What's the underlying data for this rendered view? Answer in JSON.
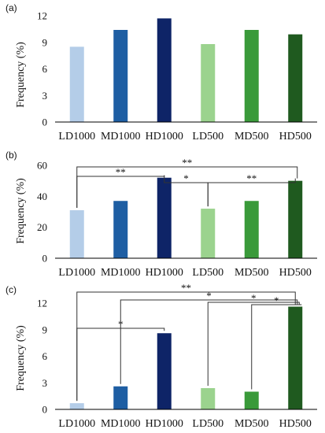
{
  "chart_data": [
    {
      "panel_label": "(a)",
      "type": "bar",
      "ylabel": "Frequency (%)",
      "xlabel": "",
      "ylim": [
        0,
        12
      ],
      "yticks": [
        0,
        3,
        6,
        9,
        12
      ],
      "grid": false,
      "categories": [
        "LD1000",
        "MD1000",
        "HD1000",
        "LD500",
        "MD500",
        "HD500"
      ],
      "values": [
        8.5,
        10.4,
        11.7,
        8.8,
        10.4,
        9.9
      ],
      "colors": [
        "#b4cde8",
        "#1e5ea3",
        "#0e2467",
        "#9bd38e",
        "#3a9a3a",
        "#1f5a1f"
      ],
      "annotations": []
    },
    {
      "panel_label": "(b)",
      "type": "bar",
      "ylabel": "Frequency (%)",
      "xlabel": "",
      "ylim": [
        0,
        60
      ],
      "yticks": [
        0,
        20,
        40,
        60
      ],
      "grid": false,
      "categories": [
        "LD1000",
        "MD1000",
        "HD1000",
        "LD500",
        "MD500",
        "HD500"
      ],
      "values": [
        31,
        37,
        52,
        32,
        37,
        50
      ],
      "colors": [
        "#b4cde8",
        "#1e5ea3",
        "#0e2467",
        "#9bd38e",
        "#3a9a3a",
        "#1f5a1f"
      ],
      "annotations": [
        {
          "from": "LD1000",
          "to": "HD1000",
          "label": "**"
        },
        {
          "from": "HD1000",
          "to": "LD500",
          "label": "*"
        },
        {
          "from": "LD500",
          "to": "HD500",
          "label": "**"
        },
        {
          "from": "LD1000",
          "to": "HD500",
          "label": "**"
        }
      ]
    },
    {
      "panel_label": "(c)",
      "type": "bar",
      "ylabel": "Frequency (%)",
      "xlabel": "",
      "ylim": [
        0,
        12
      ],
      "yticks": [
        0,
        3,
        6,
        9,
        12
      ],
      "grid": false,
      "categories": [
        "LD1000",
        "MD1000",
        "HD1000",
        "LD500",
        "MD500",
        "HD500"
      ],
      "values": [
        0.7,
        2.6,
        8.6,
        2.4,
        2.0,
        11.6
      ],
      "colors": [
        "#b4cde8",
        "#1e5ea3",
        "#0e2467",
        "#9bd38e",
        "#3a9a3a",
        "#1f5a1f"
      ],
      "annotations": [
        {
          "from": "LD1000",
          "to": "HD1000",
          "label": "*"
        },
        {
          "from": "LD1000",
          "to": "HD500",
          "label": "**"
        },
        {
          "from": "MD1000",
          "to": "HD500",
          "label": "*"
        },
        {
          "from": "LD500",
          "to": "HD500",
          "label": "*"
        },
        {
          "from": "MD500",
          "to": "HD500",
          "label": "*"
        }
      ]
    }
  ]
}
